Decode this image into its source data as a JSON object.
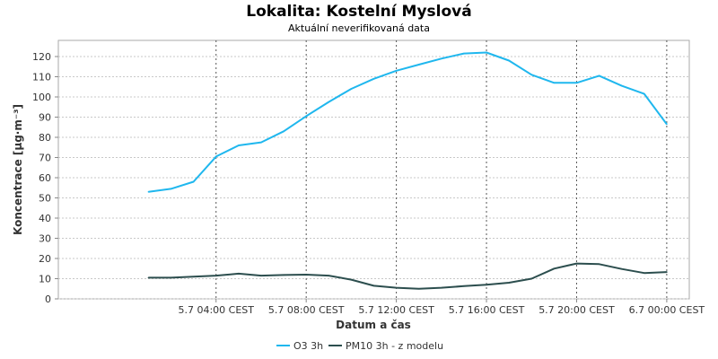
{
  "chart_data": {
    "type": "line",
    "title": "Lokalita: Kostelní Myslová",
    "subtitle": "Aktuální neverifikovaná data",
    "xlabel": "Datum a čas",
    "ylabel": "Koncentrace [µg·m⁻³]",
    "ylim": [
      0,
      128
    ],
    "yticks": [
      0,
      10,
      20,
      30,
      40,
      50,
      60,
      70,
      80,
      90,
      100,
      110,
      120
    ],
    "xlim": [
      "2024-07-04 21:00",
      "2024-07-06 01:00"
    ],
    "xtick_labels": [
      "5.7 04:00 CEST",
      "5.7 08:00 CEST",
      "5.7 12:00 CEST",
      "5.7 16:00 CEST",
      "5.7 20:00 CEST",
      "6.7 00:00 CEST"
    ],
    "grid": true,
    "legend_position": "bottom-center",
    "x": [
      "5.7 01:00",
      "5.7 02:00",
      "5.7 03:00",
      "5.7 04:00",
      "5.7 05:00",
      "5.7 06:00",
      "5.7 07:00",
      "5.7 08:00",
      "5.7 09:00",
      "5.7 10:00",
      "5.7 11:00",
      "5.7 12:00",
      "5.7 13:00",
      "5.7 14:00",
      "5.7 15:00",
      "5.7 16:00",
      "5.7 17:00",
      "5.7 18:00",
      "5.7 19:00",
      "5.7 20:00",
      "5.7 21:00",
      "5.7 22:00",
      "5.7 23:00",
      "6.7 00:00"
    ],
    "series": [
      {
        "name": "O3 3h",
        "color": "#1fb7ee",
        "values": [
          53,
          54.5,
          58,
          70.5,
          76,
          77.5,
          83,
          90.5,
          97.5,
          104,
          109,
          113,
          116,
          119,
          121.5,
          122,
          118,
          111,
          107,
          107,
          110.5,
          105.5,
          101.5,
          86.5
        ]
      },
      {
        "name": "PM10 3h - z modelu",
        "color": "#2c4e4e",
        "values": [
          10.5,
          10.5,
          11,
          11.5,
          12.5,
          11.5,
          11.8,
          12,
          11.5,
          9.5,
          6.5,
          5.5,
          5,
          5.5,
          6.3,
          7,
          8,
          10,
          15,
          17.5,
          17.2,
          14.8,
          12.8,
          13.3
        ]
      }
    ]
  }
}
